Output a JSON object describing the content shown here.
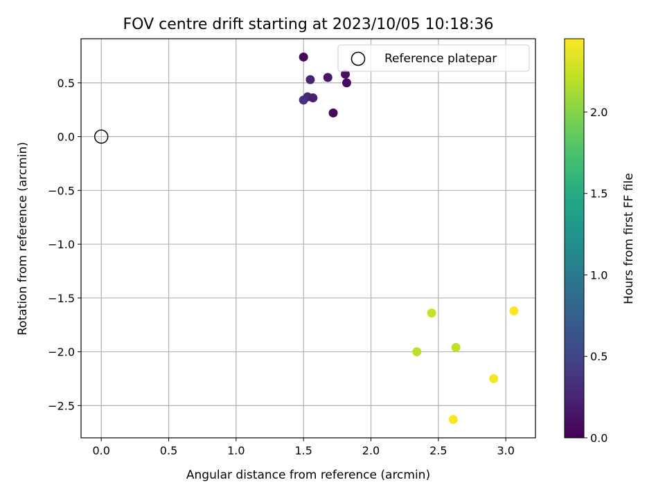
{
  "chart_data": {
    "type": "scatter",
    "title": "FOV centre drift starting at 2023/10/05 10:18:36",
    "xlabel": "Angular distance from reference (arcmin)",
    "ylabel": "Rotation from reference (arcmin)",
    "xlim": [
      -0.15,
      3.22
    ],
    "ylim": [
      -2.8,
      0.91
    ],
    "xticks": [
      "0.0",
      "0.5",
      "1.0",
      "1.5",
      "2.0",
      "2.5",
      "3.0"
    ],
    "xtick_values": [
      0.0,
      0.5,
      1.0,
      1.5,
      2.0,
      2.5,
      3.0
    ],
    "yticks": [
      "−2.5",
      "−2.0",
      "−1.5",
      "−1.0",
      "−0.5",
      "0.0",
      "0.5"
    ],
    "ytick_values": [
      -2.5,
      -2.0,
      -1.5,
      -1.0,
      -0.5,
      0.0,
      0.5
    ],
    "grid": true,
    "legend": {
      "placement": "top-right",
      "entries": [
        {
          "label": "Reference platepar",
          "marker": "open-circle"
        }
      ]
    },
    "reference_point": {
      "x": 0.0,
      "y": 0.0
    },
    "points": [
      {
        "x": 1.5,
        "y": 0.74,
        "hours": 0.05
      },
      {
        "x": 1.55,
        "y": 0.53,
        "hours": 0.25
      },
      {
        "x": 1.68,
        "y": 0.55,
        "hours": 0.15
      },
      {
        "x": 1.81,
        "y": 0.58,
        "hours": 0.1
      },
      {
        "x": 1.82,
        "y": 0.5,
        "hours": 0.08
      },
      {
        "x": 1.53,
        "y": 0.37,
        "hours": 0.28
      },
      {
        "x": 1.5,
        "y": 0.34,
        "hours": 0.35
      },
      {
        "x": 1.57,
        "y": 0.36,
        "hours": 0.22
      },
      {
        "x": 1.72,
        "y": 0.22,
        "hours": 0.05
      },
      {
        "x": 2.45,
        "y": -1.64,
        "hours": 2.25
      },
      {
        "x": 3.06,
        "y": -1.62,
        "hours": 2.45
      },
      {
        "x": 2.63,
        "y": -1.96,
        "hours": 2.22
      },
      {
        "x": 2.34,
        "y": -2.0,
        "hours": 2.2
      },
      {
        "x": 2.91,
        "y": -2.25,
        "hours": 2.42
      },
      {
        "x": 2.61,
        "y": -2.63,
        "hours": 2.43
      }
    ],
    "colorbar": {
      "label": "Hours from first FF file",
      "colormap": "viridis",
      "range": [
        0.0,
        2.45
      ],
      "ticks": [
        "0.0",
        "0.5",
        "1.0",
        "1.5",
        "2.0"
      ],
      "tick_values": [
        0.0,
        0.5,
        1.0,
        1.5,
        2.0
      ]
    }
  }
}
